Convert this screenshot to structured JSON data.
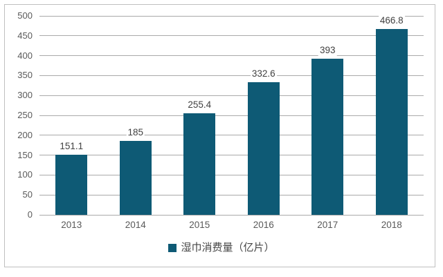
{
  "colors": {
    "bar": "#0e5a75",
    "gridline": "#a9a9a9",
    "axis_text": "#595959",
    "value_text": "#404040",
    "frame_border": "#bfbfbf",
    "background": "#ffffff"
  },
  "legend": {
    "label": "湿巾消费量（亿片）"
  },
  "chart_data": {
    "type": "bar",
    "title": "",
    "xlabel": "",
    "ylabel": "",
    "categories": [
      "2013",
      "2014",
      "2015",
      "2016",
      "2017",
      "2018"
    ],
    "values": [
      151.1,
      185,
      255.4,
      332.6,
      393,
      466.8
    ],
    "value_labels": [
      "151.1",
      "185",
      "255.4",
      "332.6",
      "393",
      "466.8"
    ],
    "ylim": [
      0,
      500
    ],
    "ytick_step": 50,
    "ytick_labels": [
      "0",
      "50",
      "100",
      "150",
      "200",
      "250",
      "300",
      "350",
      "400",
      "450",
      "500"
    ],
    "grid": "horizontal",
    "legend_entries": [
      "湿巾消费量（亿片）"
    ],
    "legend_position": "bottom-center",
    "bar_color": "#0e5a75"
  }
}
